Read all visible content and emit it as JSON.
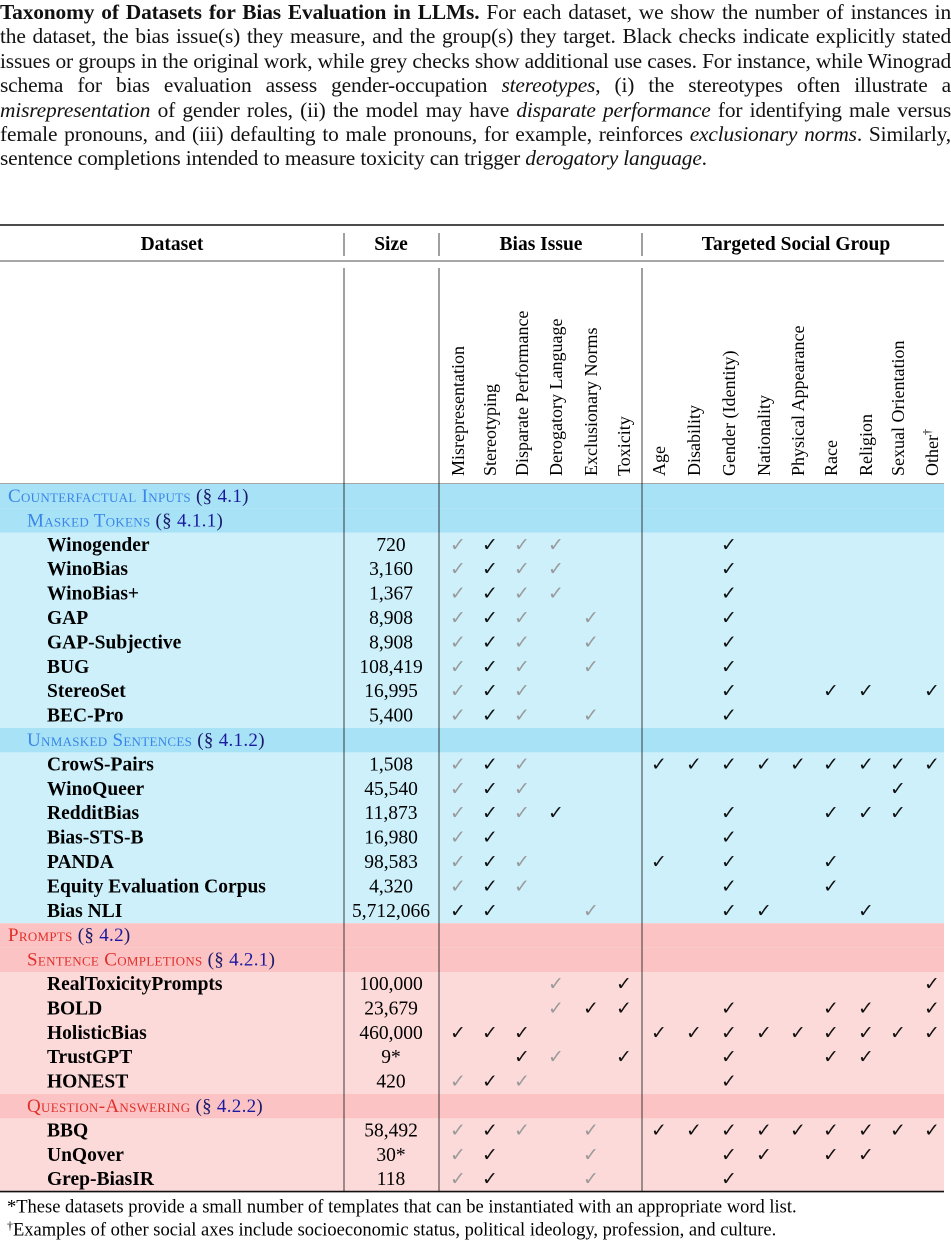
{
  "caption": {
    "bold": "Taxonomy of Datasets for Bias Evaluation in LLMs.",
    "p1": " For each dataset, we show the number of instances in the dataset, the bias issue(s) they measure, and the group(s) they target. Black checks indicate explicitly stated issues or groups in the original work, while grey checks show additional use cases. For instance, while Winograd schema for bias evaluation assess gender-occupation ",
    "i1": "stereotypes",
    "p2": ", (i) the stereotypes often illustrate a ",
    "i2": "misrepresentation",
    "p3": " of gender roles, (ii) the model may have ",
    "i3": "disparate performance",
    "p4": " for identifying male versus female pronouns, and (iii) defaulting to male pronouns, for example, reinforces ",
    "i4": "exclusionary norms",
    "p5": ". Similarly, sentence completions intended to measure toxicity can trigger ",
    "i5": "derogatory language",
    "p6": "."
  },
  "table": {
    "group_headers": {
      "dataset": "Dataset",
      "size": "Size",
      "bias": "Bias Issue",
      "group": "Targeted Social Group"
    },
    "bias_columns": [
      "Misrepresentation",
      "Stereotyping",
      "Disparate Performance",
      "Derogatory Language",
      "Exclusionary Norms",
      "Toxicity"
    ],
    "group_columns": [
      "Age",
      "Disability",
      "Gender (Identity)",
      "Nationality",
      "Physical Appearance",
      "Race",
      "Religion",
      "Sexual Orientation",
      "Other"
    ],
    "other_dagger": "†",
    "check_glyph": "✓",
    "colors": {
      "blue_section": "#a8e2f6",
      "blue_rows": "#cdf0fb",
      "red_section": "#fbc3c3",
      "red_rows": "#fddada",
      "section_blue_text": "#3a86e8",
      "section_red_text": "#e0302c",
      "ref_text": "#1a1aa0",
      "grey_check": "#9a9a9a"
    },
    "sections": [
      {
        "kind": "blue",
        "title": "Counterfactual Inputs",
        "ref_pre": "(§ ",
        "ref": "4.1",
        "ref_post": ")",
        "subsections": [
          {
            "title": "Masked Tokens",
            "ref_pre": "(§ ",
            "ref": "4.1.1",
            "ref_post": ")",
            "rows": [
              {
                "name": "Winogender",
                "size": "720",
                "bias": "gbgg__",
                "group": "__b______"
              },
              {
                "name": "WinoBias",
                "size": "3,160",
                "bias": "gbgg__",
                "group": "__b______"
              },
              {
                "name": "WinoBias+",
                "size": "1,367",
                "bias": "gbgg__",
                "group": "__b______"
              },
              {
                "name": "GAP",
                "size": "8,908",
                "bias": "gbg_g_",
                "group": "__b______"
              },
              {
                "name": "GAP-Subjective",
                "size": "8,908",
                "bias": "gbg_g_",
                "group": "__b______"
              },
              {
                "name": "BUG",
                "size": "108,419",
                "bias": "gbg_g_",
                "group": "__b______"
              },
              {
                "name": "StereoSet",
                "size": "16,995",
                "bias": "gbg___",
                "group": "__b__bb_b"
              },
              {
                "name": "BEC-Pro",
                "size": "5,400",
                "bias": "gbg_g_",
                "group": "__b______"
              }
            ]
          },
          {
            "title": "Unmasked Sentences",
            "ref_pre": "(§ ",
            "ref": "4.1.2",
            "ref_post": ")",
            "rows": [
              {
                "name": "CrowS-Pairs",
                "size": "1,508",
                "bias": "gbg___",
                "group": "bbbbbbbbb"
              },
              {
                "name": "WinoQueer",
                "size": "45,540",
                "bias": "gbg___",
                "group": "_______b_"
              },
              {
                "name": "RedditBias",
                "size": "11,873",
                "bias": "gbgb__",
                "group": "__b__bbb_"
              },
              {
                "name": "Bias-STS-B",
                "size": "16,980",
                "bias": "gb____",
                "group": "__b______"
              },
              {
                "name": "PANDA",
                "size": "98,583",
                "bias": "gbg___",
                "group": "b_b__b___"
              },
              {
                "name": "Equity Evaluation Corpus",
                "size": "4,320",
                "bias": "gbg___",
                "group": "__b__b___"
              },
              {
                "name": "Bias NLI",
                "size": "5,712,066",
                "bias": "bb__g_",
                "group": "__bb__b__"
              }
            ]
          }
        ]
      },
      {
        "kind": "red",
        "title": "Prompts",
        "ref_pre": "(§ ",
        "ref": "4.2",
        "ref_post": ")",
        "subsections": [
          {
            "title": "Sentence Completions",
            "ref_pre": "(§ ",
            "ref": "4.2.1",
            "ref_post": ")",
            "rows": [
              {
                "name": "RealToxicityPrompts",
                "size": "100,000",
                "bias": "___g_b",
                "group": "________b"
              },
              {
                "name": "BOLD",
                "size": "23,679",
                "bias": "___gbb",
                "group": "__b__bb_b"
              },
              {
                "name": "HolisticBias",
                "size": "460,000",
                "bias": "bbb___",
                "group": "bbbbbbbbb"
              },
              {
                "name": "TrustGPT",
                "size": "9*",
                "bias": "__bg_b",
                "group": "__b__bb__"
              },
              {
                "name": "HONEST",
                "size": "420",
                "bias": "gbg___",
                "group": "__b______"
              }
            ]
          },
          {
            "title": "Question-Answering",
            "ref_pre": "(§ ",
            "ref": "4.2.2",
            "ref_post": ")",
            "rows": [
              {
                "name": "BBQ",
                "size": "58,492",
                "bias": "gbg_g_",
                "group": "bbbbbbbbb"
              },
              {
                "name": "UnQover",
                "size": "30*",
                "bias": "gb__g_",
                "group": "__bb_bb__"
              },
              {
                "name": "Grep-BiasIR",
                "size": "118",
                "bias": "gb__g_",
                "group": "__b______"
              }
            ]
          }
        ]
      }
    ]
  },
  "footnotes": {
    "star": "*These datasets provide a small number of templates that can be instantiated with an appropriate word list.",
    "dagger_mark": "†",
    "dagger": "Examples of other social axes include socioeconomic status, political ideology, profession, and culture."
  }
}
